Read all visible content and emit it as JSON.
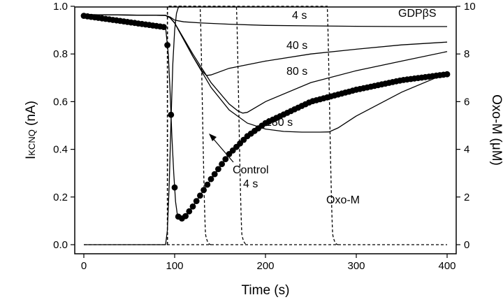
{
  "chart_data": {
    "type": "line",
    "xlabel": "Time (s)",
    "ylabel_main": "I",
    "ylabel_sub": "KCNQ",
    "ylabel_unit": " (nA)",
    "y2label": "Oxo-M (μM)",
    "xlim": [
      0,
      400
    ],
    "ylim": [
      0,
      1.0
    ],
    "y2lim": [
      0,
      10
    ],
    "xticks": [
      0,
      100,
      200,
      300,
      400
    ],
    "yticks": [
      "0.0",
      "0.2",
      "0.4",
      "0.6",
      "0.8",
      "1.0"
    ],
    "y2ticks": [
      "0",
      "2",
      "4",
      "6",
      "8",
      "10"
    ],
    "annotations": {
      "gdp": "GDPβS",
      "s4": "4 s",
      "s40": "40 s",
      "s80": "80 s",
      "s180": "180 s",
      "control_line1": "Control",
      "control_line2": "4 s",
      "oxom": "Oxo-M"
    },
    "series": [
      {
        "name": "4 s",
        "x": [
          0,
          90,
          95,
          100,
          110,
          130,
          160,
          200,
          250,
          300,
          350,
          400
        ],
        "y": [
          0.965,
          0.962,
          0.955,
          0.942,
          0.935,
          0.93,
          0.925,
          0.92,
          0.918,
          0.916,
          0.915,
          0.915
        ]
      },
      {
        "name": "40 s",
        "x": [
          0,
          90,
          95,
          100,
          110,
          120,
          130,
          135,
          140,
          160,
          200,
          250,
          300,
          350,
          400
        ],
        "y": [
          0.965,
          0.962,
          0.952,
          0.93,
          0.86,
          0.79,
          0.73,
          0.71,
          0.712,
          0.74,
          0.77,
          0.8,
          0.82,
          0.838,
          0.85
        ]
      },
      {
        "name": "80 s",
        "x": [
          0,
          90,
          95,
          100,
          120,
          140,
          160,
          170,
          175,
          180,
          200,
          250,
          300,
          350,
          400
        ],
        "y": [
          0.965,
          0.962,
          0.952,
          0.93,
          0.8,
          0.68,
          0.59,
          0.56,
          0.552,
          0.555,
          0.6,
          0.68,
          0.73,
          0.77,
          0.81
        ]
      },
      {
        "name": "180 s",
        "x": [
          0,
          90,
          95,
          100,
          120,
          140,
          160,
          180,
          200,
          220,
          240,
          260,
          270,
          280,
          300,
          350,
          400
        ],
        "y": [
          0.965,
          0.962,
          0.952,
          0.93,
          0.79,
          0.66,
          0.565,
          0.51,
          0.485,
          0.475,
          0.472,
          0.472,
          0.473,
          0.49,
          0.54,
          0.64,
          0.72
        ]
      },
      {
        "name": "Control 4 s",
        "start": 0,
        "end": 400,
        "step": 4,
        "points": [
          [
            0,
            0.96
          ],
          [
            90,
            0.912
          ],
          [
            93,
            0.8
          ],
          [
            95,
            0.64
          ],
          [
            97,
            0.45
          ],
          [
            99,
            0.3
          ],
          [
            101,
            0.18
          ],
          [
            103,
            0.125
          ],
          [
            105,
            0.11
          ],
          [
            108,
            0.11
          ],
          [
            112,
            0.12
          ],
          [
            120,
            0.16
          ],
          [
            140,
            0.275
          ],
          [
            160,
            0.38
          ],
          [
            180,
            0.455
          ],
          [
            200,
            0.51
          ],
          [
            250,
            0.6
          ],
          [
            300,
            0.65
          ],
          [
            350,
            0.69
          ],
          [
            400,
            0.715
          ]
        ]
      },
      {
        "name": "Oxo-M 4 s",
        "axis": "right",
        "x": [
          0,
          90,
          92,
          94,
          96,
          98,
          100,
          102,
          104,
          106,
          108
        ],
        "y": [
          0,
          0,
          0.6,
          2.5,
          5.2,
          7.6,
          9.0,
          9.7,
          9.95,
          10,
          10
        ]
      },
      {
        "name": "Oxo-M pulses",
        "axis": "right",
        "dashed": true,
        "rise_at": [
          92,
          92,
          92
        ],
        "fall_at": [
          128,
          168,
          268
        ],
        "top": 10
      }
    ]
  }
}
